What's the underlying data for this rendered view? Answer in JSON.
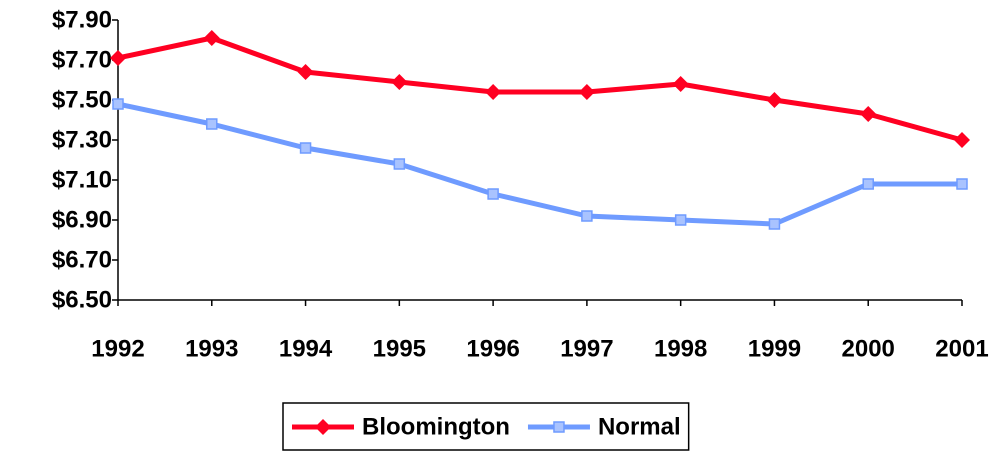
{
  "chart_data": {
    "type": "line",
    "categories": [
      "1992",
      "1993",
      "1994",
      "1995",
      "1996",
      "1997",
      "1998",
      "1999",
      "2000",
      "2001"
    ],
    "series": [
      {
        "name": "Bloomington",
        "color": "#ff0022",
        "marker": "diamond",
        "values": [
          7.71,
          7.81,
          7.64,
          7.59,
          7.54,
          7.54,
          7.58,
          7.5,
          7.43,
          7.3
        ]
      },
      {
        "name": "Normal",
        "color": "#6f9bff",
        "marker": "square",
        "values": [
          7.48,
          7.38,
          7.26,
          7.18,
          7.03,
          6.92,
          6.9,
          6.88,
          7.08,
          7.08
        ]
      }
    ],
    "ylim": [
      6.5,
      7.9
    ],
    "yticks": [
      {
        "value": 6.5,
        "label": "$6.50"
      },
      {
        "value": 6.7,
        "label": "$6.70"
      },
      {
        "value": 6.9,
        "label": "$6.90"
      },
      {
        "value": 7.1,
        "label": "$7.10"
      },
      {
        "value": 7.3,
        "label": "$7.30"
      },
      {
        "value": 7.5,
        "label": "$7.50"
      },
      {
        "value": 7.7,
        "label": "$7.70"
      },
      {
        "value": 7.9,
        "label": "$7.90"
      }
    ],
    "grid": false,
    "legend": "bottom"
  }
}
